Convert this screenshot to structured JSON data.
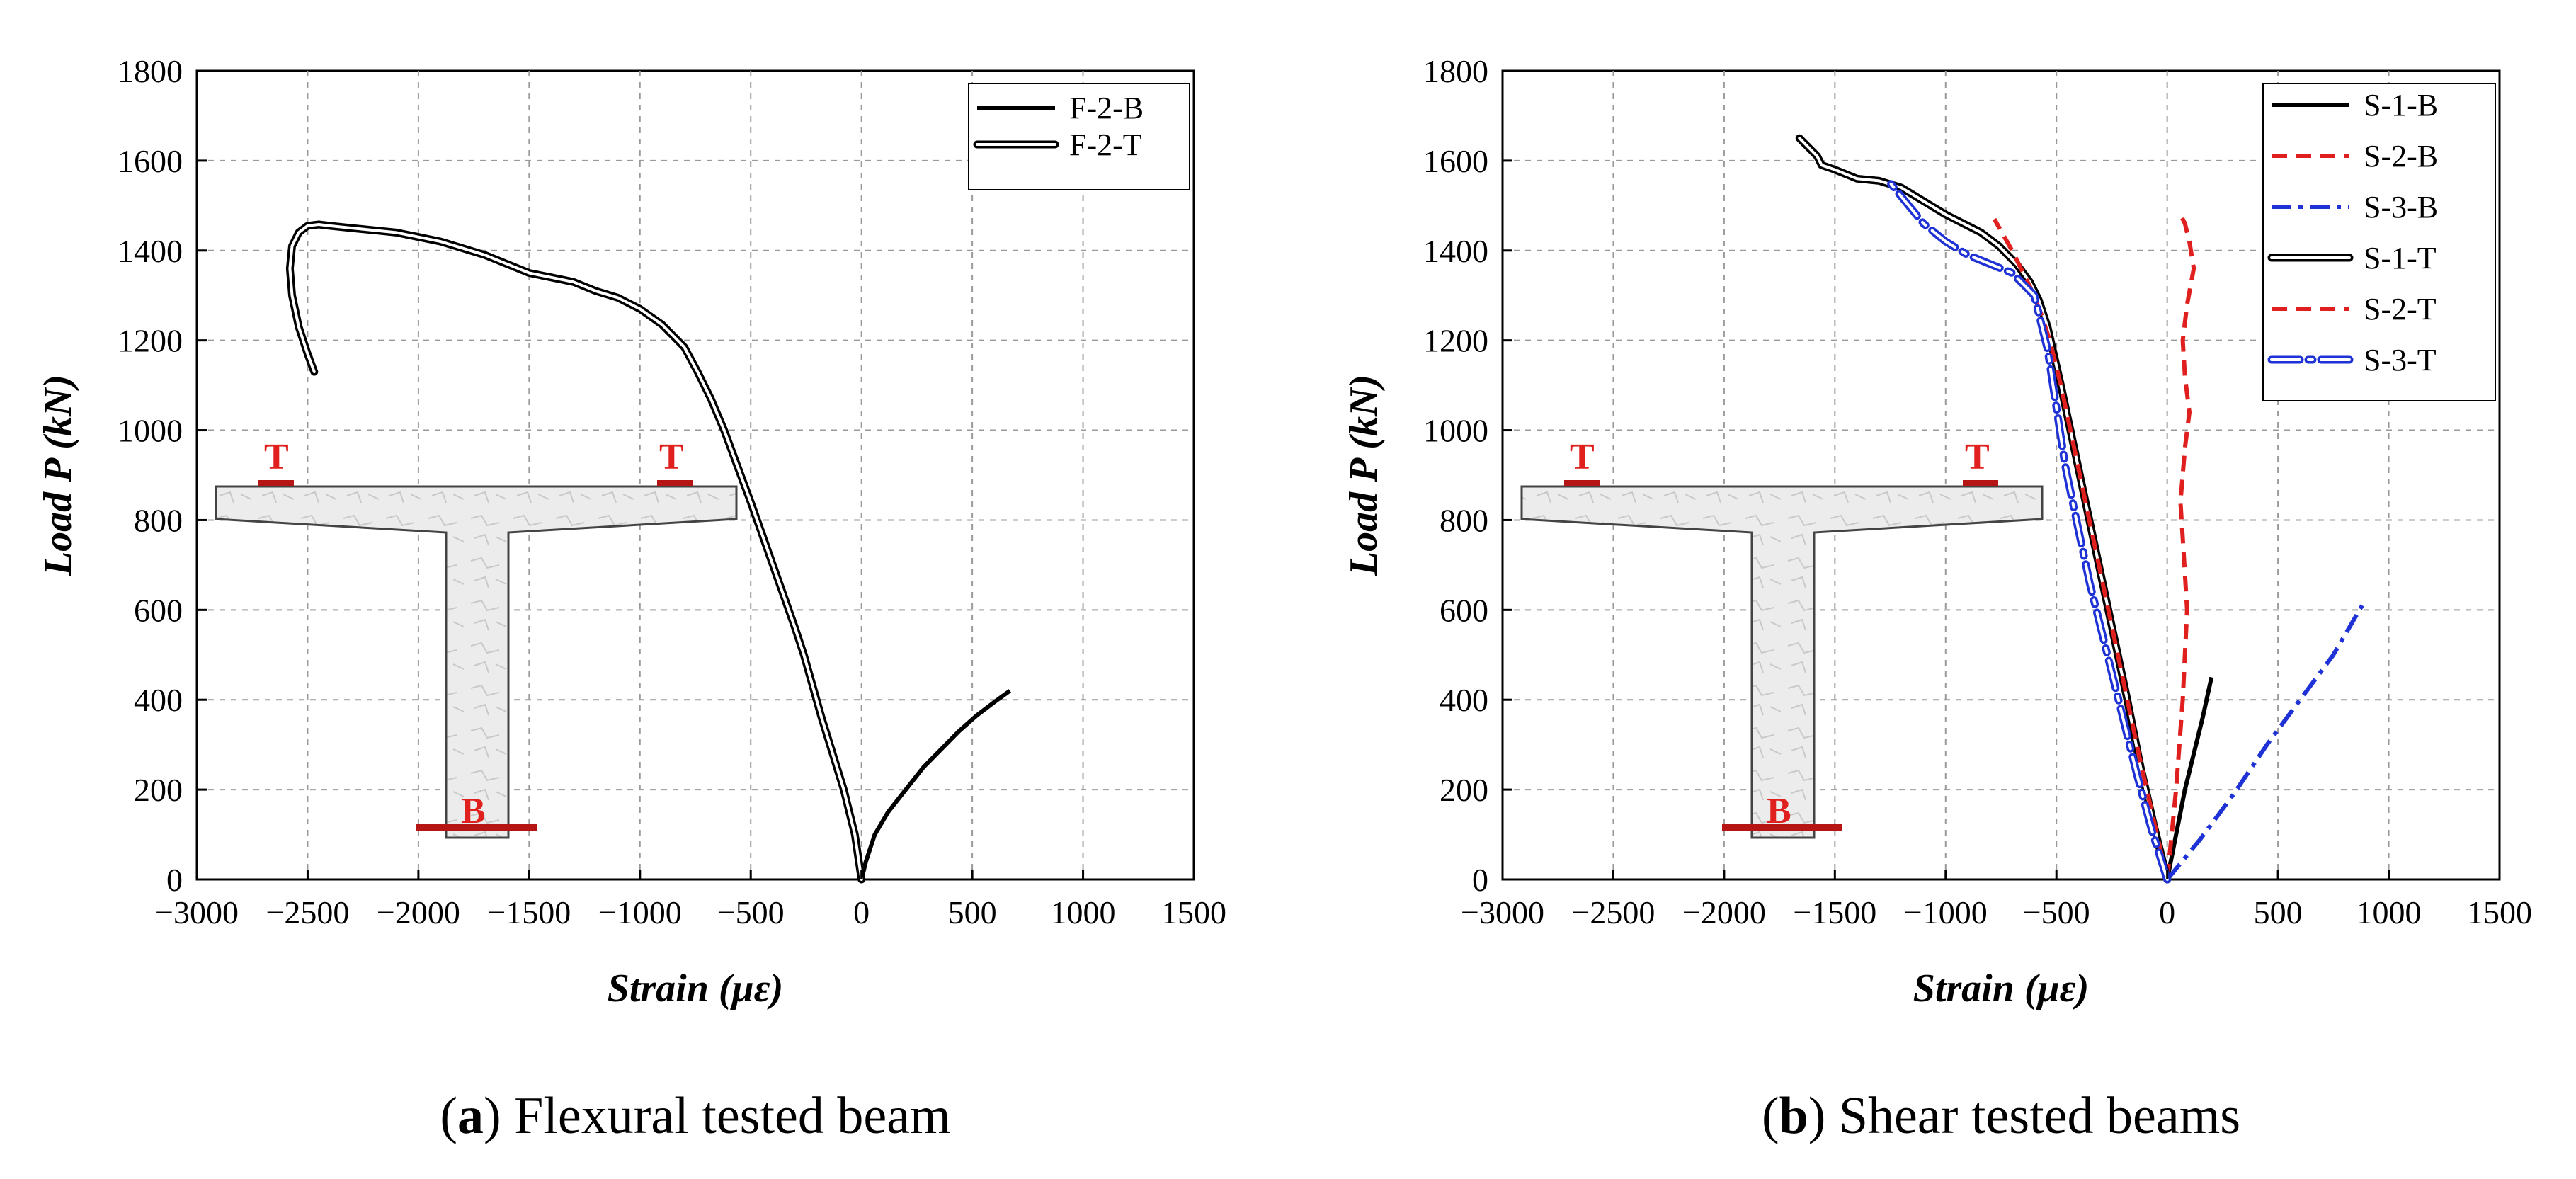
{
  "chart_data": [
    {
      "type": "line",
      "caption_letter": "a",
      "caption_text": " Flexural tested beam",
      "xlabel": "Strain (με)",
      "ylabel": "Load P (kN)",
      "xlim": [
        -3000,
        1500
      ],
      "ylim": [
        0,
        1800
      ],
      "xticks": [
        -3000,
        -2500,
        -2000,
        -1500,
        -1000,
        -500,
        0,
        500,
        1000,
        1500
      ],
      "yticks": [
        0,
        200,
        400,
        600,
        800,
        1000,
        1200,
        1400,
        1600,
        1800
      ],
      "grid": true,
      "legend_position": "top-right",
      "inset_markers": {
        "top_left": "T",
        "top_right": "T",
        "bottom": "B"
      },
      "series": [
        {
          "name": "F-2-B",
          "style": "solid",
          "color": "#000000",
          "x": [
            0,
            20,
            60,
            120,
            200,
            280,
            360,
            440,
            520,
            600,
            670
          ],
          "y": [
            0,
            40,
            100,
            150,
            200,
            250,
            290,
            330,
            365,
            395,
            420
          ]
        },
        {
          "name": "F-2-T",
          "style": "double",
          "color": "#000000",
          "x": [
            0,
            -30,
            -80,
            -130,
            -180,
            -220,
            -260,
            -300,
            -350,
            -400,
            -450,
            -500,
            -560,
            -620,
            -680,
            -740,
            -800,
            -900,
            -1000,
            -1100,
            -1200,
            -1300,
            -1400,
            -1500,
            -1600,
            -1700,
            -1800,
            -1900,
            -2000,
            -2100,
            -2200,
            -2300,
            -2400,
            -2450,
            -2500,
            -2540,
            -2570,
            -2580,
            -2570,
            -2540,
            -2500,
            -2470
          ],
          "y": [
            0,
            100,
            200,
            280,
            360,
            430,
            500,
            560,
            630,
            700,
            770,
            840,
            920,
            1000,
            1070,
            1130,
            1185,
            1235,
            1270,
            1295,
            1310,
            1330,
            1340,
            1350,
            1370,
            1390,
            1405,
            1420,
            1430,
            1440,
            1445,
            1450,
            1455,
            1458,
            1455,
            1440,
            1410,
            1360,
            1300,
            1230,
            1170,
            1130
          ]
        }
      ],
      "ui": {
        "panel_label_prefix": "(",
        "panel_label_suffix": ")"
      }
    },
    {
      "type": "line",
      "caption_letter": "b",
      "caption_text": " Shear tested beams",
      "xlabel": "Strain (με)",
      "ylabel": "Load P (kN)",
      "xlim": [
        -3000,
        1500
      ],
      "ylim": [
        0,
        1800
      ],
      "xticks": [
        -3000,
        -2500,
        -2000,
        -1500,
        -1000,
        -500,
        0,
        500,
        1000,
        1500
      ],
      "yticks": [
        0,
        200,
        400,
        600,
        800,
        1000,
        1200,
        1400,
        1600,
        1800
      ],
      "grid": true,
      "legend_position": "top-right",
      "inset_markers": {
        "top_left": "T",
        "top_right": "T",
        "bottom": "B"
      },
      "series": [
        {
          "name": "S-1-B",
          "style": "solid",
          "color": "#000000",
          "x": [
            0,
            40,
            80,
            120,
            160,
            200
          ],
          "y": [
            0,
            100,
            200,
            280,
            360,
            450
          ]
        },
        {
          "name": "S-2-B",
          "style": "dash",
          "color": "#e0201e",
          "x": [
            0,
            40,
            70,
            90,
            70,
            60,
            80,
            100,
            80,
            70,
            90,
            120,
            100,
            80,
            60
          ],
          "y": [
            0,
            200,
            400,
            600,
            760,
            840,
            960,
            1040,
            1120,
            1200,
            1280,
            1360,
            1420,
            1460,
            1480
          ]
        },
        {
          "name": "S-3-B",
          "style": "dashdot",
          "color": "#1e32d6",
          "x": [
            0,
            150,
            300,
            450,
            600,
            750,
            880
          ],
          "y": [
            0,
            90,
            190,
            300,
            400,
            500,
            610
          ]
        },
        {
          "name": "S-1-T",
          "style": "double",
          "color": "#000000",
          "x": [
            0,
            -60,
            -120,
            -180,
            -240,
            -300,
            -360,
            -420,
            -480,
            -540,
            -580,
            -620,
            -680,
            -760,
            -840,
            -920,
            -1000,
            -1100,
            -1200,
            -1300,
            -1400,
            -1500,
            -1560,
            -1580,
            -1620,
            -1660
          ],
          "y": [
            0,
            120,
            250,
            400,
            540,
            680,
            820,
            960,
            1100,
            1230,
            1290,
            1330,
            1370,
            1410,
            1440,
            1460,
            1480,
            1510,
            1540,
            1555,
            1560,
            1580,
            1590,
            1610,
            1630,
            1650
          ]
        },
        {
          "name": "S-2-T",
          "style": "dash",
          "color": "#e0201e",
          "x": [
            0,
            -60,
            -120,
            -180,
            -240,
            -300,
            -360,
            -420,
            -480,
            -530,
            -570,
            -620,
            -700,
            -780
          ],
          "y": [
            0,
            130,
            260,
            400,
            540,
            680,
            820,
            960,
            1100,
            1200,
            1260,
            1320,
            1400,
            1470
          ]
        },
        {
          "name": "S-3-T",
          "style": "double-dot",
          "color": "#1e32d6",
          "x": [
            0,
            -70,
            -140,
            -210,
            -280,
            -350,
            -410,
            -460,
            -500,
            -540,
            -600,
            -700,
            -800,
            -900,
            -1000,
            -1100,
            -1250
          ],
          "y": [
            0,
            110,
            240,
            380,
            520,
            660,
            800,
            920,
            1050,
            1180,
            1300,
            1350,
            1370,
            1390,
            1420,
            1460,
            1550
          ]
        }
      ],
      "ui": {
        "panel_label_prefix": "(",
        "panel_label_suffix": ")"
      }
    }
  ]
}
